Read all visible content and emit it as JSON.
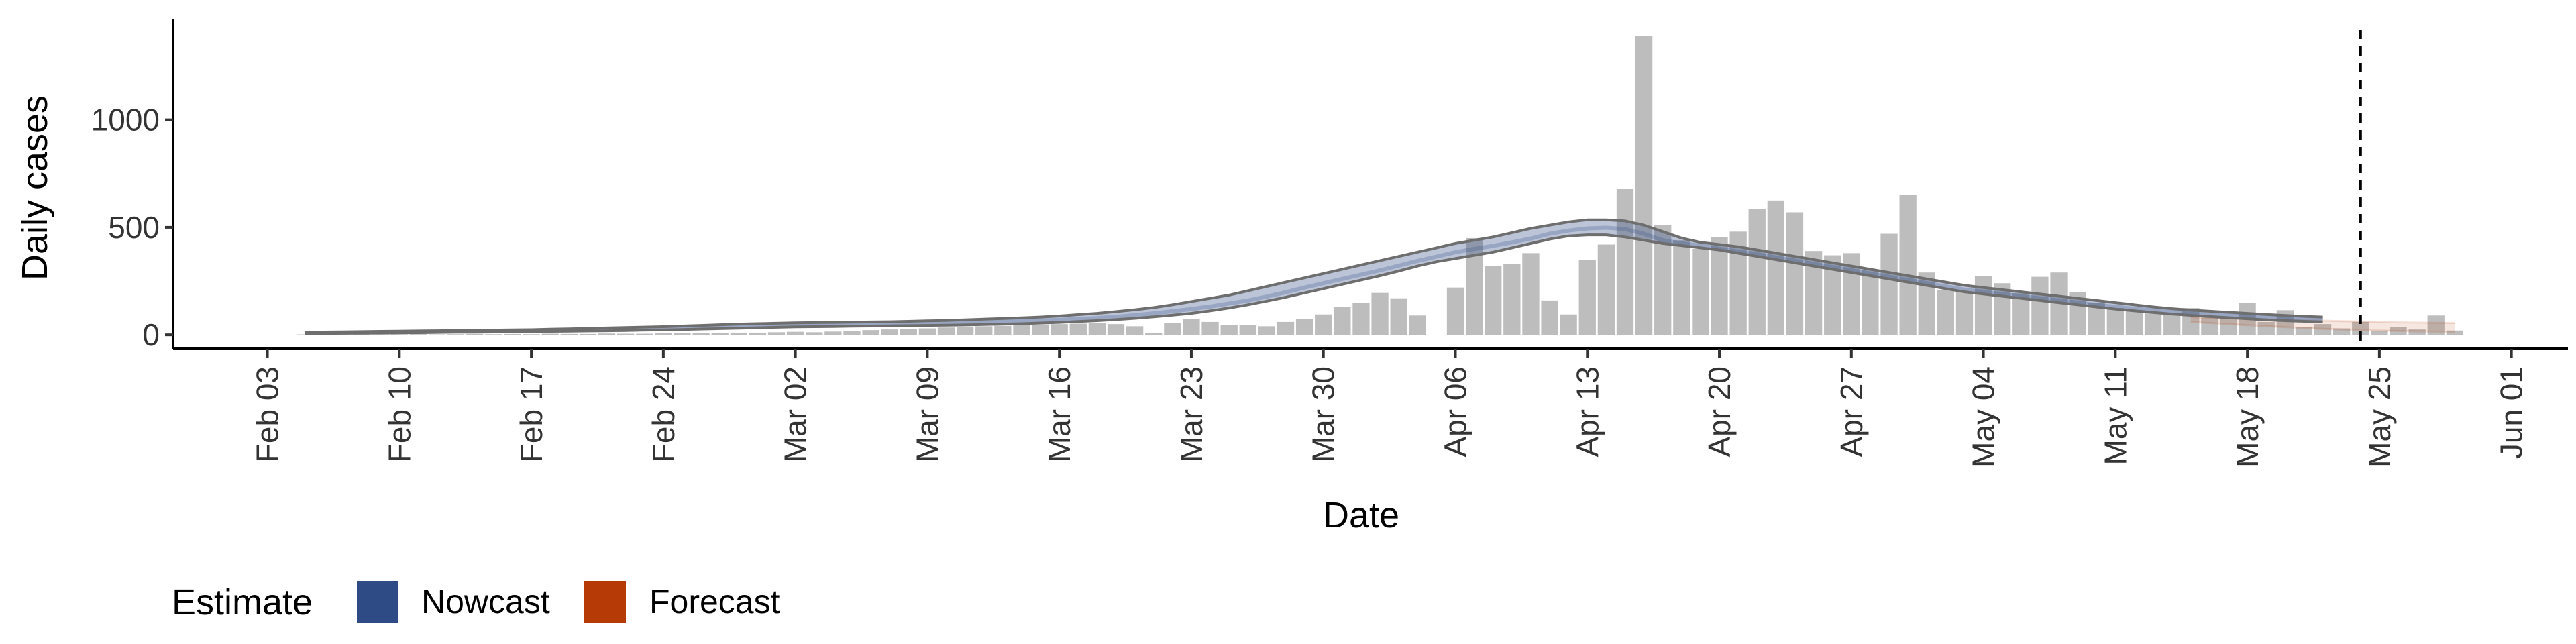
{
  "chart_data": {
    "type": "bar",
    "xlabel": "Date",
    "ylabel": "Daily cases",
    "x_domain": [
      "2020-01-29",
      "2020-06-04"
    ],
    "ylim": [
      -65,
      1470
    ],
    "y_ticks": [
      0,
      500,
      1000
    ],
    "x_ticks": [
      {
        "date": "2020-02-03",
        "label": "Feb 03"
      },
      {
        "date": "2020-02-10",
        "label": "Feb 10"
      },
      {
        "date": "2020-02-17",
        "label": "Feb 17"
      },
      {
        "date": "2020-02-24",
        "label": "Feb 24"
      },
      {
        "date": "2020-03-02",
        "label": "Mar 02"
      },
      {
        "date": "2020-03-09",
        "label": "Mar 09"
      },
      {
        "date": "2020-03-16",
        "label": "Mar 16"
      },
      {
        "date": "2020-03-23",
        "label": "Mar 23"
      },
      {
        "date": "2020-03-30",
        "label": "Mar 30"
      },
      {
        "date": "2020-04-06",
        "label": "Apr 06"
      },
      {
        "date": "2020-04-13",
        "label": "Apr 13"
      },
      {
        "date": "2020-04-20",
        "label": "Apr 20"
      },
      {
        "date": "2020-04-27",
        "label": "Apr 27"
      },
      {
        "date": "2020-05-04",
        "label": "May 04"
      },
      {
        "date": "2020-05-11",
        "label": "May 11"
      },
      {
        "date": "2020-05-18",
        "label": "May 18"
      },
      {
        "date": "2020-05-25",
        "label": "May 25"
      },
      {
        "date": "2020-06-01",
        "label": "Jun 01"
      }
    ],
    "bars": {
      "start_date": "2020-02-05",
      "color": "#bdbdbd",
      "values": [
        2,
        2,
        1,
        3,
        1,
        2,
        3,
        2,
        3,
        4,
        3,
        4,
        3,
        5,
        4,
        4,
        6,
        5,
        5,
        7,
        7,
        8,
        9,
        10,
        10,
        12,
        14,
        12,
        15,
        18,
        22,
        25,
        28,
        30,
        34,
        38,
        40,
        42,
        45,
        48,
        50,
        52,
        55,
        50,
        40,
        10,
        55,
        75,
        60,
        45,
        45,
        40,
        60,
        75,
        95,
        130,
        150,
        195,
        170,
        90,
        0,
        220,
        450,
        320,
        330,
        380,
        160,
        95,
        350,
        420,
        680,
        1390,
        510,
        440,
        400,
        455,
        480,
        585,
        625,
        570,
        390,
        370,
        380,
        300,
        470,
        650,
        290,
        210,
        200,
        275,
        240,
        195,
        270,
        290,
        200,
        150,
        125,
        110,
        100,
        95,
        125,
        80,
        80,
        150,
        60,
        115,
        35,
        50,
        30,
        60,
        20,
        35,
        25,
        90,
        20
      ]
    },
    "nowcast": {
      "start_date": "2020-02-05",
      "end_date": "2020-05-15",
      "color": "#2f4b85",
      "band_opacity": 0.32,
      "lower": [
        5,
        6,
        7,
        8,
        8,
        9,
        10,
        11,
        12,
        12,
        13,
        14,
        15,
        16,
        17,
        18,
        19,
        20,
        22,
        23,
        25,
        27,
        29,
        31,
        33,
        35,
        37,
        38,
        39,
        40,
        41,
        42,
        43,
        44,
        45,
        46,
        48,
        50,
        52,
        55,
        58,
        62,
        66,
        71,
        77,
        84,
        92,
        100,
        112,
        125,
        140,
        157,
        175,
        195,
        215,
        235,
        255,
        275,
        297,
        320,
        340,
        355,
        370,
        385,
        405,
        425,
        445,
        460,
        465,
        465,
        455,
        440,
        425,
        415,
        405,
        395,
        380,
        365,
        350,
        335,
        320,
        305,
        290,
        275,
        260,
        245,
        230,
        215,
        200,
        190,
        180,
        170,
        160,
        150,
        140,
        130,
        120,
        112,
        104,
        97,
        91,
        85,
        80,
        75,
        70,
        66,
        63,
        60
      ],
      "upper": [
        12,
        13,
        14,
        15,
        16,
        17,
        18,
        19,
        20,
        21,
        22,
        23,
        24,
        26,
        28,
        30,
        32,
        34,
        36,
        38,
        41,
        44,
        47,
        50,
        52,
        54,
        56,
        57,
        58,
        59,
        60,
        61,
        63,
        65,
        67,
        70,
        73,
        76,
        79,
        83,
        88,
        94,
        100,
        108,
        117,
        127,
        140,
        155,
        170,
        185,
        205,
        225,
        245,
        265,
        285,
        305,
        325,
        345,
        365,
        385,
        405,
        425,
        440,
        455,
        475,
        495,
        510,
        525,
        535,
        535,
        530,
        510,
        480,
        450,
        430,
        420,
        410,
        395,
        380,
        365,
        350,
        335,
        320,
        305,
        290,
        275,
        260,
        245,
        230,
        220,
        210,
        200,
        190,
        180,
        170,
        160,
        150,
        140,
        130,
        122,
        115,
        110,
        105,
        100,
        95,
        90,
        86,
        83
      ],
      "median": [
        8,
        9,
        10,
        11,
        12,
        13,
        14,
        15,
        16,
        17,
        18,
        19,
        20,
        21,
        22,
        23,
        24,
        26,
        28,
        30,
        32,
        34,
        36,
        38,
        40,
        42,
        44,
        45,
        46,
        47,
        48,
        50,
        52,
        54,
        56,
        58,
        60,
        62,
        64,
        67,
        70,
        74,
        78,
        84,
        92,
        100,
        110,
        120,
        132,
        146,
        160,
        178,
        198,
        220,
        240,
        260,
        280,
        300,
        322,
        344,
        364,
        384,
        400,
        414,
        430,
        448,
        470,
        485,
        495,
        498,
        492,
        470,
        440,
        425,
        415,
        400,
        388,
        375,
        360,
        345,
        330,
        315,
        300,
        285,
        270,
        255,
        240,
        225,
        210,
        200,
        190,
        180,
        170,
        160,
        150,
        140,
        130,
        122,
        114,
        106,
        100,
        94,
        90,
        86,
        82,
        78,
        75,
        72
      ]
    },
    "forecast": {
      "start_date": "2020-05-15",
      "end_date": "2020-05-29",
      "color": "#b53a06",
      "band_opacity": 0.12,
      "lower": [
        60,
        55,
        50,
        45,
        40,
        36,
        32,
        28,
        25,
        22,
        20,
        18,
        16,
        15,
        14
      ],
      "upper": [
        83,
        80,
        78,
        75,
        72,
        70,
        68,
        66,
        64,
        62,
        60,
        58,
        57,
        56,
        55
      ]
    },
    "vline": {
      "date": "2020-05-24",
      "style": "dashed"
    },
    "legend": {
      "title": "Estimate",
      "position": "bottom-left",
      "items": [
        {
          "label": "Nowcast",
          "color": "#2f4b85"
        },
        {
          "label": "Forecast",
          "color": "#b53a06"
        }
      ]
    },
    "grid": false
  }
}
